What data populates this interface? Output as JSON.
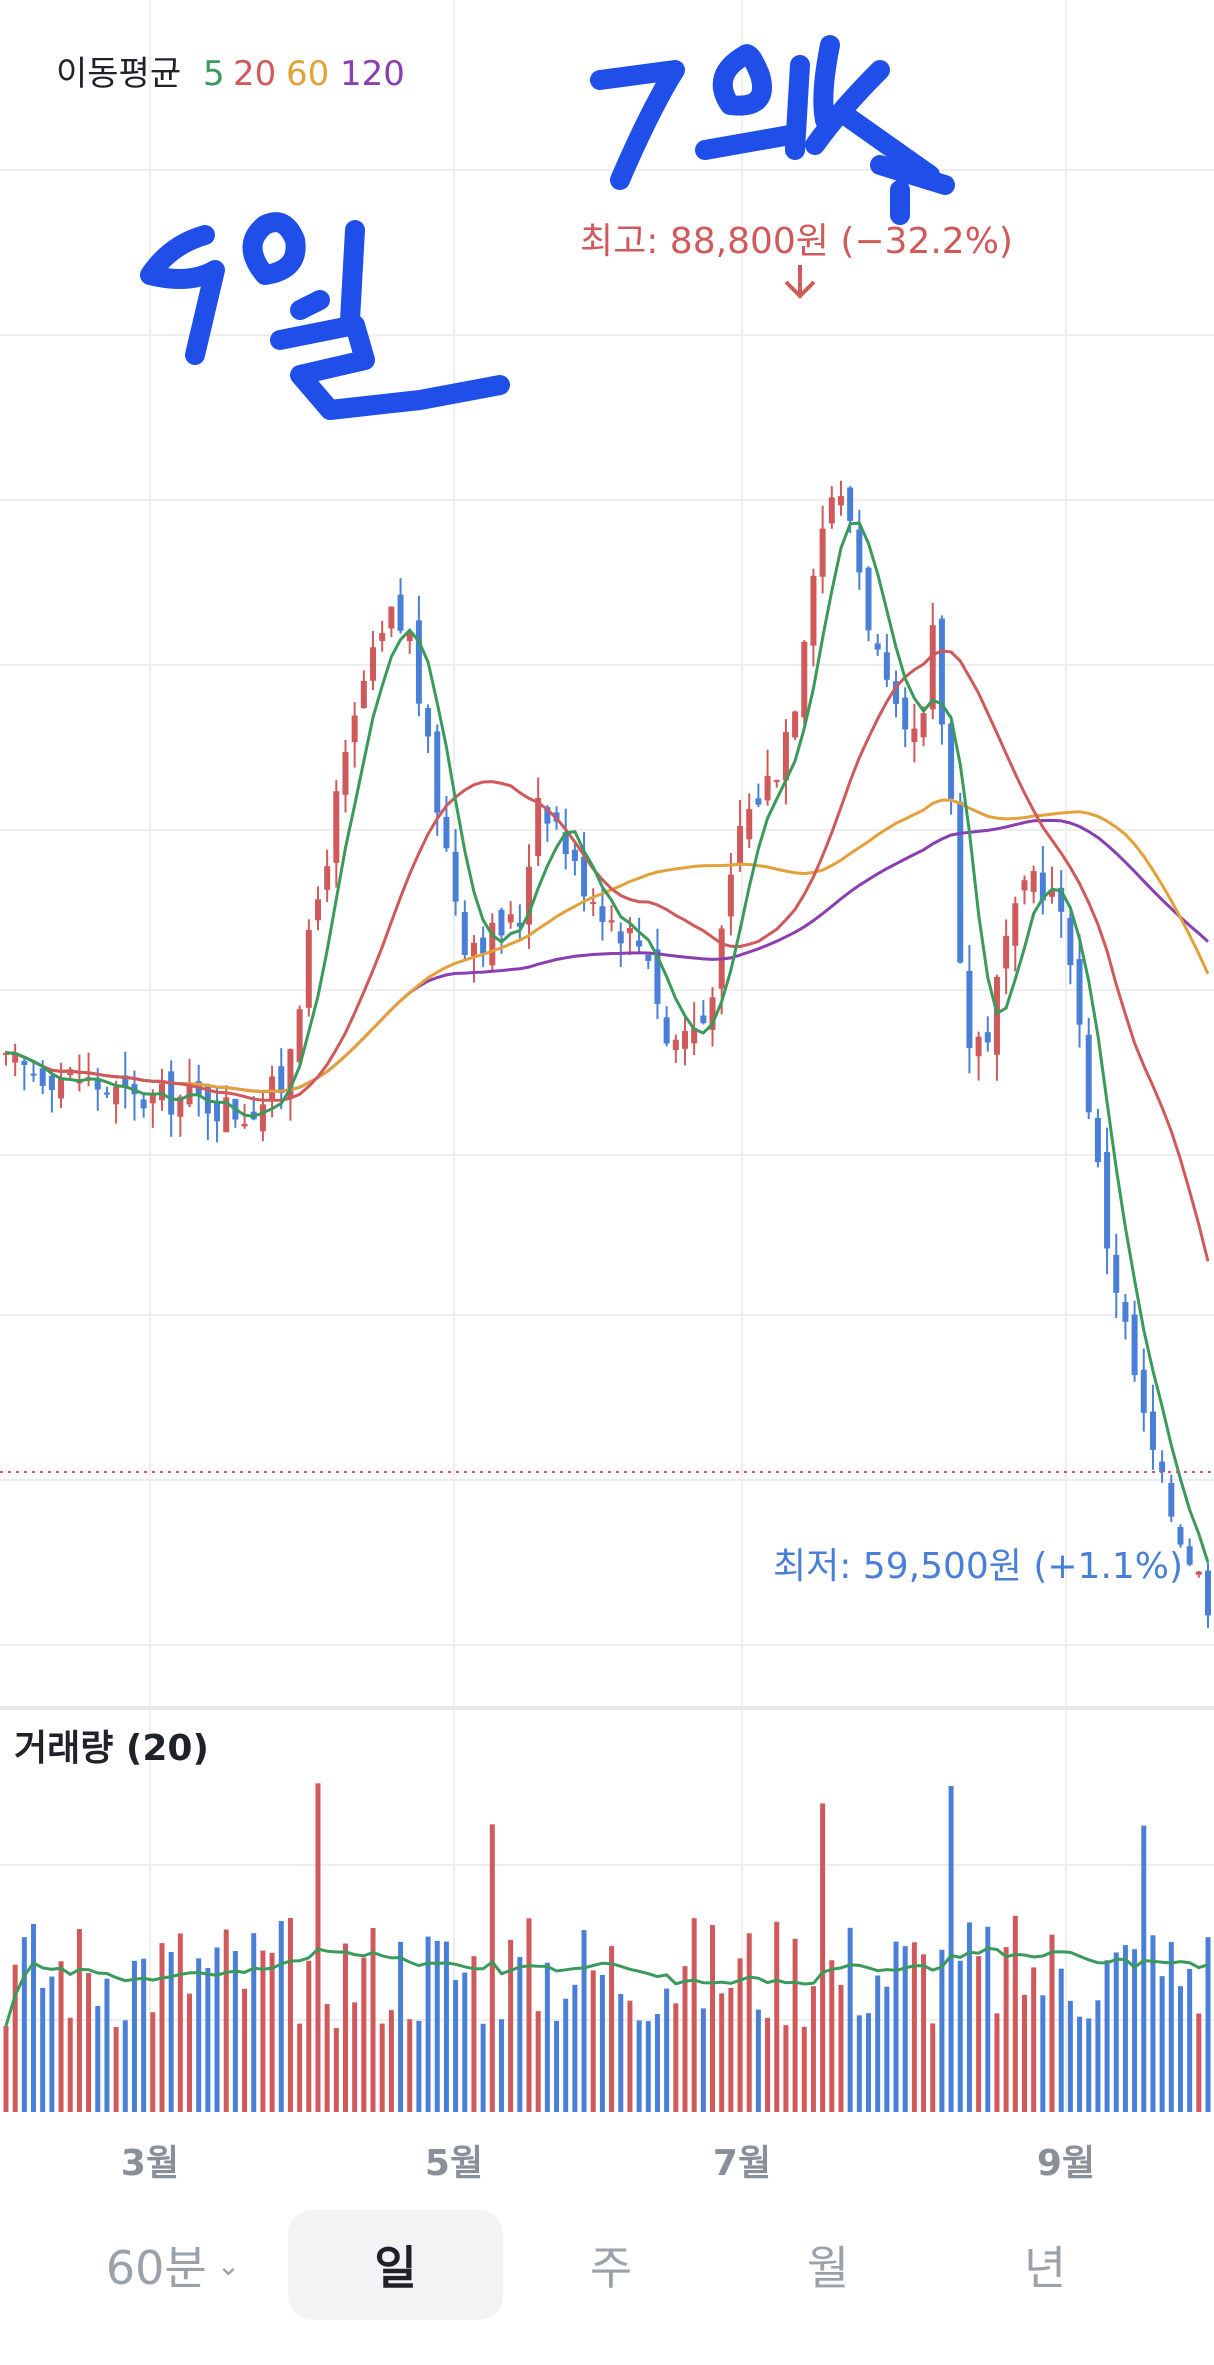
{
  "chart_data": {
    "type": "candlestick",
    "moving_average": {
      "title": "이동평균",
      "periods": [
        {
          "label": "5",
          "color": "#3a9a5b"
        },
        {
          "label": "20",
          "color": "#d0595b"
        },
        {
          "label": "60",
          "color": "#e3a13a"
        },
        {
          "label": "120",
          "color": "#8a3fb0"
        }
      ]
    },
    "months": [
      "3월",
      "5월",
      "7월",
      "9월"
    ],
    "price_annotations": {
      "high": {
        "text": "최고: 88,800원 (−32.2%)",
        "value": 88800,
        "color": "#d0595b"
      },
      "low": {
        "text": "최저: 59,500원 (+1.1%)",
        "value": 59500,
        "color": "#4a7fd8"
      }
    },
    "candles": [],
    "ma5": [],
    "ma20": [],
    "ma60": [],
    "ma120": [],
    "volume": {
      "label": "거래량 (20)",
      "ma_color": "#3a9a5b"
    },
    "colors": {
      "up": "#d0595b",
      "down": "#4a7fd8",
      "grid": "#eeeeee",
      "handwriting": "#1f4fe8"
    },
    "handwritten_annotations": [
      "5월",
      "7월"
    ],
    "timeframes": [
      {
        "label": "60분",
        "selected": false
      },
      {
        "label": "일",
        "selected": true
      },
      {
        "label": "주",
        "selected": false
      },
      {
        "label": "월",
        "selected": false
      },
      {
        "label": "년",
        "selected": false
      }
    ]
  }
}
